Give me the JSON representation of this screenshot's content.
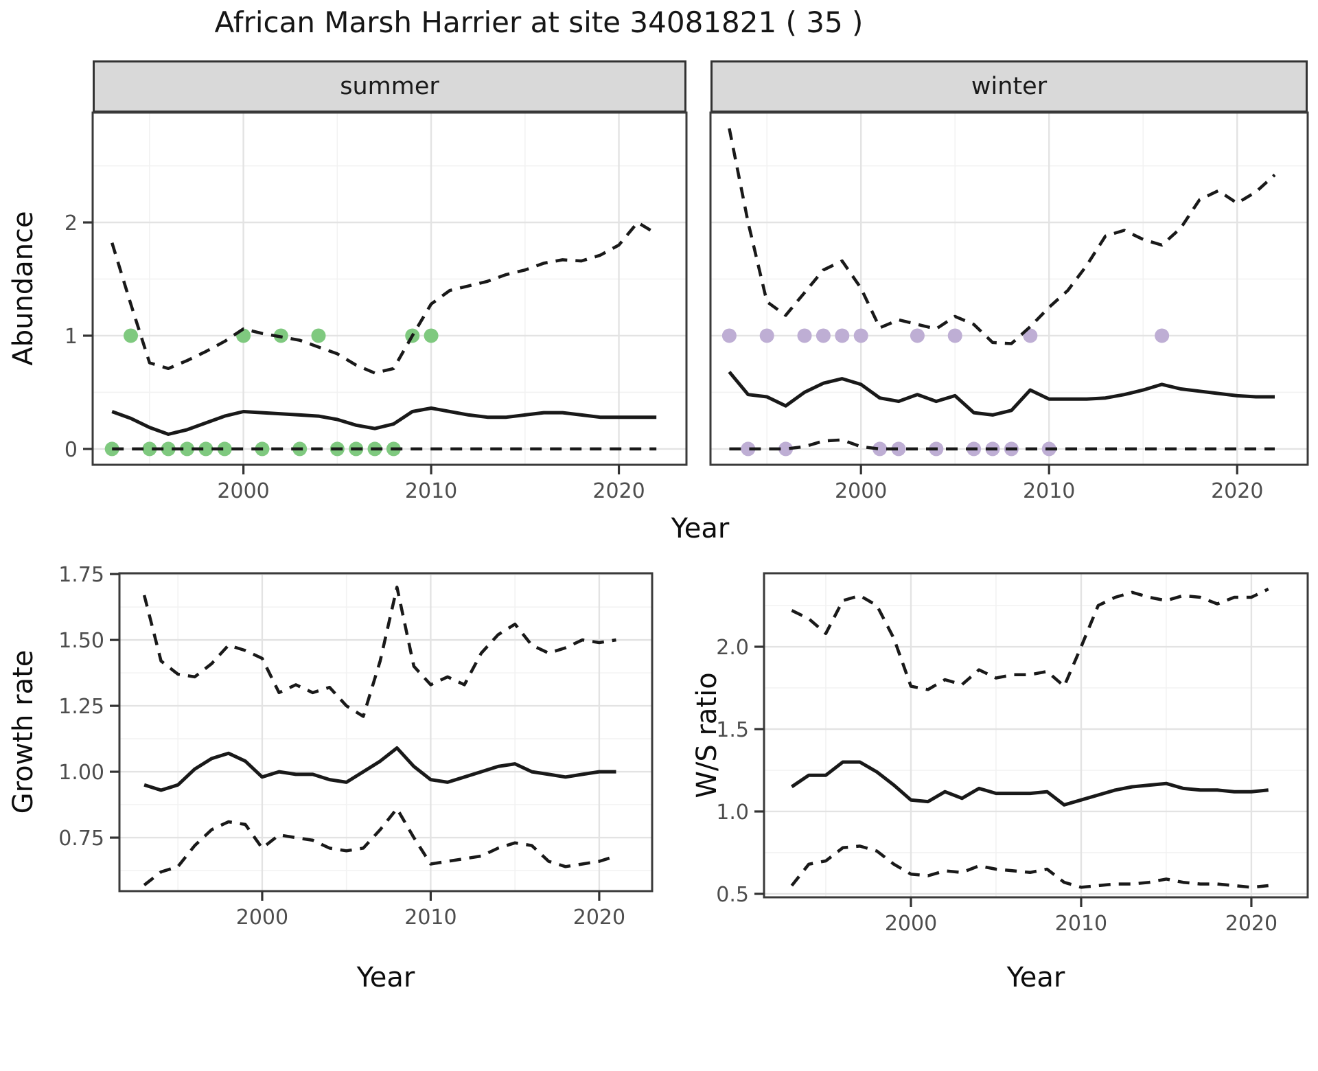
{
  "title": "African Marsh Harrier at site 34081821 ( 35 )",
  "facets": {
    "summer": "summer",
    "winter": "winter"
  },
  "axis_labels": {
    "abundance": "Abundance",
    "year": "Year",
    "growth_rate": "Growth rate",
    "ws_ratio": "W/S ratio"
  },
  "colors": {
    "line": "#191919",
    "summer_points": "#7FC97F",
    "winter_points": "#BEAED4",
    "grid_major": "#E3E3E3",
    "grid_minor": "#F2F2F2",
    "panel_border": "#3a3a3a",
    "tick_mark": "#333333",
    "tick_text": "#4D4D4D",
    "strip_bg": "#D9D9D9"
  },
  "chart_data": [
    {
      "id": "abundance_summer",
      "type": "line",
      "facet": "summer",
      "ylabel": "Abundance",
      "xlabel": "Year",
      "xlim": [
        1991.97,
        2023.6
      ],
      "ylim": [
        -0.14,
        2.97
      ],
      "x_ticks": [
        2000,
        2010,
        2020
      ],
      "x_tick_labels": [
        "2000",
        "2010",
        "2020"
      ],
      "x_minor": [
        1995,
        2005,
        2015
      ],
      "y_ticks": [
        0,
        1,
        2
      ],
      "y_tick_labels": [
        "0",
        "1",
        "2"
      ],
      "y_minor": [
        0.5,
        1.5,
        2.5
      ],
      "x": [
        1993,
        1994,
        1995,
        1996,
        1997,
        1998,
        1999,
        2000,
        2001,
        2002,
        2003,
        2004,
        2005,
        2006,
        2007,
        2008,
        2009,
        2010,
        2011,
        2012,
        2013,
        2014,
        2015,
        2016,
        2017,
        2018,
        2019,
        2020,
        2021,
        2022
      ],
      "series": [
        {
          "name": "ci_upper",
          "style": "dashed",
          "values": [
            1.82,
            1.28,
            0.76,
            0.71,
            0.78,
            0.86,
            0.95,
            1.06,
            1.02,
            0.99,
            0.96,
            0.9,
            0.84,
            0.74,
            0.67,
            0.71,
            1.0,
            1.28,
            1.4,
            1.44,
            1.48,
            1.54,
            1.58,
            1.64,
            1.67,
            1.66,
            1.71,
            1.8,
            2.0,
            1.9
          ]
        },
        {
          "name": "mean",
          "style": "solid",
          "values": [
            0.33,
            0.27,
            0.19,
            0.13,
            0.17,
            0.23,
            0.29,
            0.33,
            0.32,
            0.31,
            0.3,
            0.29,
            0.26,
            0.21,
            0.18,
            0.22,
            0.33,
            0.36,
            0.33,
            0.3,
            0.28,
            0.28,
            0.3,
            0.32,
            0.32,
            0.3,
            0.28,
            0.28,
            0.28,
            0.28
          ]
        },
        {
          "name": "ci_lower",
          "style": "dashed",
          "values": [
            0,
            0,
            0,
            0,
            0,
            0,
            0,
            0,
            0,
            0,
            0,
            0,
            0,
            0,
            0,
            0,
            0,
            0,
            0,
            0,
            0,
            0,
            0,
            0,
            0,
            0,
            0,
            0,
            0,
            0
          ]
        }
      ],
      "points": {
        "name": "observed_presence",
        "color": "#7FC97F",
        "x": [
          1993,
          1994,
          1995,
          1996,
          1997,
          1998,
          1999,
          2000,
          2001,
          2002,
          2003,
          2004,
          2005,
          2006,
          2007,
          2008,
          2009,
          2010
        ],
        "y": [
          0,
          1,
          0,
          0,
          0,
          0,
          0,
          1,
          0,
          1,
          0,
          1,
          0,
          0,
          0,
          0,
          1,
          1
        ]
      }
    },
    {
      "id": "abundance_winter",
      "type": "line",
      "facet": "winter",
      "ylabel": "Abundance",
      "xlabel": "Year",
      "xlim": [
        1992.0,
        2023.75
      ],
      "ylim": [
        -0.14,
        2.97
      ],
      "x_ticks": [
        2000,
        2010,
        2020
      ],
      "x_tick_labels": [
        "2000",
        "2010",
        "2020"
      ],
      "x_minor": [
        1995,
        2005,
        2015
      ],
      "y_ticks": [
        0,
        1,
        2
      ],
      "y_tick_labels": [
        "0",
        "1",
        "2"
      ],
      "y_minor": [
        0.5,
        1.5,
        2.5
      ],
      "x": [
        1993,
        1994,
        1995,
        1996,
        1997,
        1998,
        1999,
        2000,
        2001,
        2002,
        2003,
        2004,
        2005,
        2006,
        2007,
        2008,
        2009,
        2010,
        2011,
        2012,
        2013,
        2014,
        2015,
        2016,
        2017,
        2018,
        2019,
        2020,
        2021,
        2022
      ],
      "series": [
        {
          "name": "ci_upper",
          "style": "dashed",
          "values": [
            2.83,
            2.0,
            1.3,
            1.18,
            1.38,
            1.58,
            1.66,
            1.42,
            1.07,
            1.14,
            1.1,
            1.06,
            1.17,
            1.1,
            0.94,
            0.93,
            1.08,
            1.25,
            1.4,
            1.62,
            1.88,
            1.93,
            1.85,
            1.8,
            1.95,
            2.2,
            2.28,
            2.17,
            2.27,
            2.42
          ]
        },
        {
          "name": "mean",
          "style": "solid",
          "values": [
            0.68,
            0.48,
            0.46,
            0.38,
            0.5,
            0.58,
            0.62,
            0.57,
            0.45,
            0.42,
            0.48,
            0.42,
            0.47,
            0.32,
            0.3,
            0.34,
            0.52,
            0.44,
            0.44,
            0.44,
            0.45,
            0.48,
            0.52,
            0.57,
            0.53,
            0.51,
            0.49,
            0.47,
            0.46,
            0.46
          ]
        },
        {
          "name": "ci_lower",
          "style": "dashed",
          "values": [
            0,
            0,
            0,
            0,
            0.02,
            0.07,
            0.08,
            0.02,
            0,
            0,
            0,
            0,
            0,
            0,
            0,
            0,
            0,
            0,
            0,
            0,
            0,
            0,
            0,
            0,
            0,
            0,
            0,
            0,
            0,
            0
          ]
        }
      ],
      "points": {
        "name": "observed_presence",
        "color": "#BEAED4",
        "x": [
          1993,
          1994,
          1995,
          1996,
          1997,
          1998,
          1999,
          2000,
          2001,
          2002,
          2003,
          2004,
          2005,
          2006,
          2007,
          2008,
          2009,
          2010,
          2016
        ],
        "y": [
          1,
          0,
          1,
          0,
          1,
          1,
          1,
          1,
          0,
          0,
          1,
          0,
          1,
          0,
          0,
          0,
          1,
          0,
          1
        ]
      }
    },
    {
      "id": "growth_rate",
      "type": "line",
      "ylabel": "Growth rate",
      "xlabel": "Year",
      "xlim": [
        1991.53,
        2023.14
      ],
      "ylim": [
        0.547,
        1.753
      ],
      "x_ticks": [
        2000,
        2010,
        2020
      ],
      "x_tick_labels": [
        "2000",
        "2010",
        "2020"
      ],
      "x_minor": [
        1995,
        2005,
        2015
      ],
      "y_ticks": [
        0.75,
        1.0,
        1.25,
        1.5,
        1.75
      ],
      "y_tick_labels": [
        "0.75",
        "1.00",
        "1.25",
        "1.50",
        "1.75"
      ],
      "y_minor": [
        0.625,
        0.875,
        1.125,
        1.375,
        1.625
      ],
      "x": [
        1993,
        1994,
        1995,
        1996,
        1997,
        1998,
        1999,
        2000,
        2001,
        2002,
        2003,
        2004,
        2005,
        2006,
        2007,
        2008,
        2009,
        2010,
        2011,
        2012,
        2013,
        2014,
        2015,
        2016,
        2017,
        2018,
        2019,
        2020,
        2021
      ],
      "series": [
        {
          "name": "ci_upper",
          "style": "dashed",
          "values": [
            1.67,
            1.42,
            1.37,
            1.36,
            1.41,
            1.48,
            1.46,
            1.43,
            1.3,
            1.33,
            1.3,
            1.32,
            1.25,
            1.21,
            1.42,
            1.7,
            1.4,
            1.33,
            1.36,
            1.33,
            1.45,
            1.52,
            1.56,
            1.48,
            1.45,
            1.47,
            1.5,
            1.49,
            1.5
          ]
        },
        {
          "name": "mean",
          "style": "solid",
          "values": [
            0.95,
            0.93,
            0.95,
            1.01,
            1.05,
            1.07,
            1.04,
            0.98,
            1.0,
            0.99,
            0.99,
            0.97,
            0.96,
            1.0,
            1.04,
            1.09,
            1.02,
            0.97,
            0.96,
            0.98,
            1.0,
            1.02,
            1.03,
            1.0,
            0.99,
            0.98,
            0.99,
            1.0,
            1.0
          ]
        },
        {
          "name": "ci_lower",
          "style": "dashed",
          "values": [
            0.57,
            0.62,
            0.64,
            0.72,
            0.78,
            0.81,
            0.8,
            0.71,
            0.76,
            0.75,
            0.74,
            0.71,
            0.7,
            0.71,
            0.78,
            0.86,
            0.75,
            0.65,
            0.66,
            0.67,
            0.68,
            0.71,
            0.73,
            0.72,
            0.66,
            0.64,
            0.65,
            0.66,
            0.68
          ]
        }
      ]
    },
    {
      "id": "ws_ratio",
      "type": "line",
      "ylabel": "W/S ratio",
      "xlabel": "Year",
      "xlim": [
        1991.37,
        2023.31
      ],
      "ylim": [
        0.479,
        2.446
      ],
      "x_ticks": [
        2000,
        2010,
        2020
      ],
      "x_tick_labels": [
        "2000",
        "2010",
        "2020"
      ],
      "x_minor": [
        1995,
        2005,
        2015
      ],
      "y_ticks": [
        0.5,
        1.0,
        1.5,
        2.0
      ],
      "y_tick_labels": [
        "0.5",
        "1.0",
        "1.5",
        "2.0"
      ],
      "y_minor": [
        0.75,
        1.25,
        1.75,
        2.25
      ],
      "x": [
        1993,
        1994,
        1995,
        1996,
        1997,
        1998,
        1999,
        2000,
        2001,
        2002,
        2003,
        2004,
        2005,
        2006,
        2007,
        2008,
        2009,
        2010,
        2011,
        2012,
        2013,
        2014,
        2015,
        2016,
        2017,
        2018,
        2019,
        2020,
        2021
      ],
      "series": [
        {
          "name": "ci_upper",
          "style": "dashed",
          "values": [
            2.22,
            2.17,
            2.08,
            2.28,
            2.31,
            2.25,
            2.05,
            1.76,
            1.74,
            1.8,
            1.77,
            1.86,
            1.81,
            1.83,
            1.83,
            1.85,
            1.76,
            2.0,
            2.25,
            2.3,
            2.33,
            2.3,
            2.28,
            2.31,
            2.3,
            2.26,
            2.3,
            2.3,
            2.35
          ]
        },
        {
          "name": "mean",
          "style": "solid",
          "values": [
            1.15,
            1.22,
            1.22,
            1.3,
            1.3,
            1.24,
            1.16,
            1.07,
            1.06,
            1.12,
            1.08,
            1.14,
            1.11,
            1.11,
            1.11,
            1.12,
            1.04,
            1.07,
            1.1,
            1.13,
            1.15,
            1.16,
            1.17,
            1.14,
            1.13,
            1.13,
            1.12,
            1.12,
            1.13
          ]
        },
        {
          "name": "ci_lower",
          "style": "dashed",
          "values": [
            0.55,
            0.68,
            0.7,
            0.78,
            0.79,
            0.76,
            0.68,
            0.62,
            0.61,
            0.64,
            0.63,
            0.67,
            0.65,
            0.64,
            0.63,
            0.65,
            0.57,
            0.54,
            0.55,
            0.56,
            0.56,
            0.57,
            0.59,
            0.57,
            0.56,
            0.56,
            0.55,
            0.54,
            0.55
          ]
        }
      ]
    }
  ]
}
